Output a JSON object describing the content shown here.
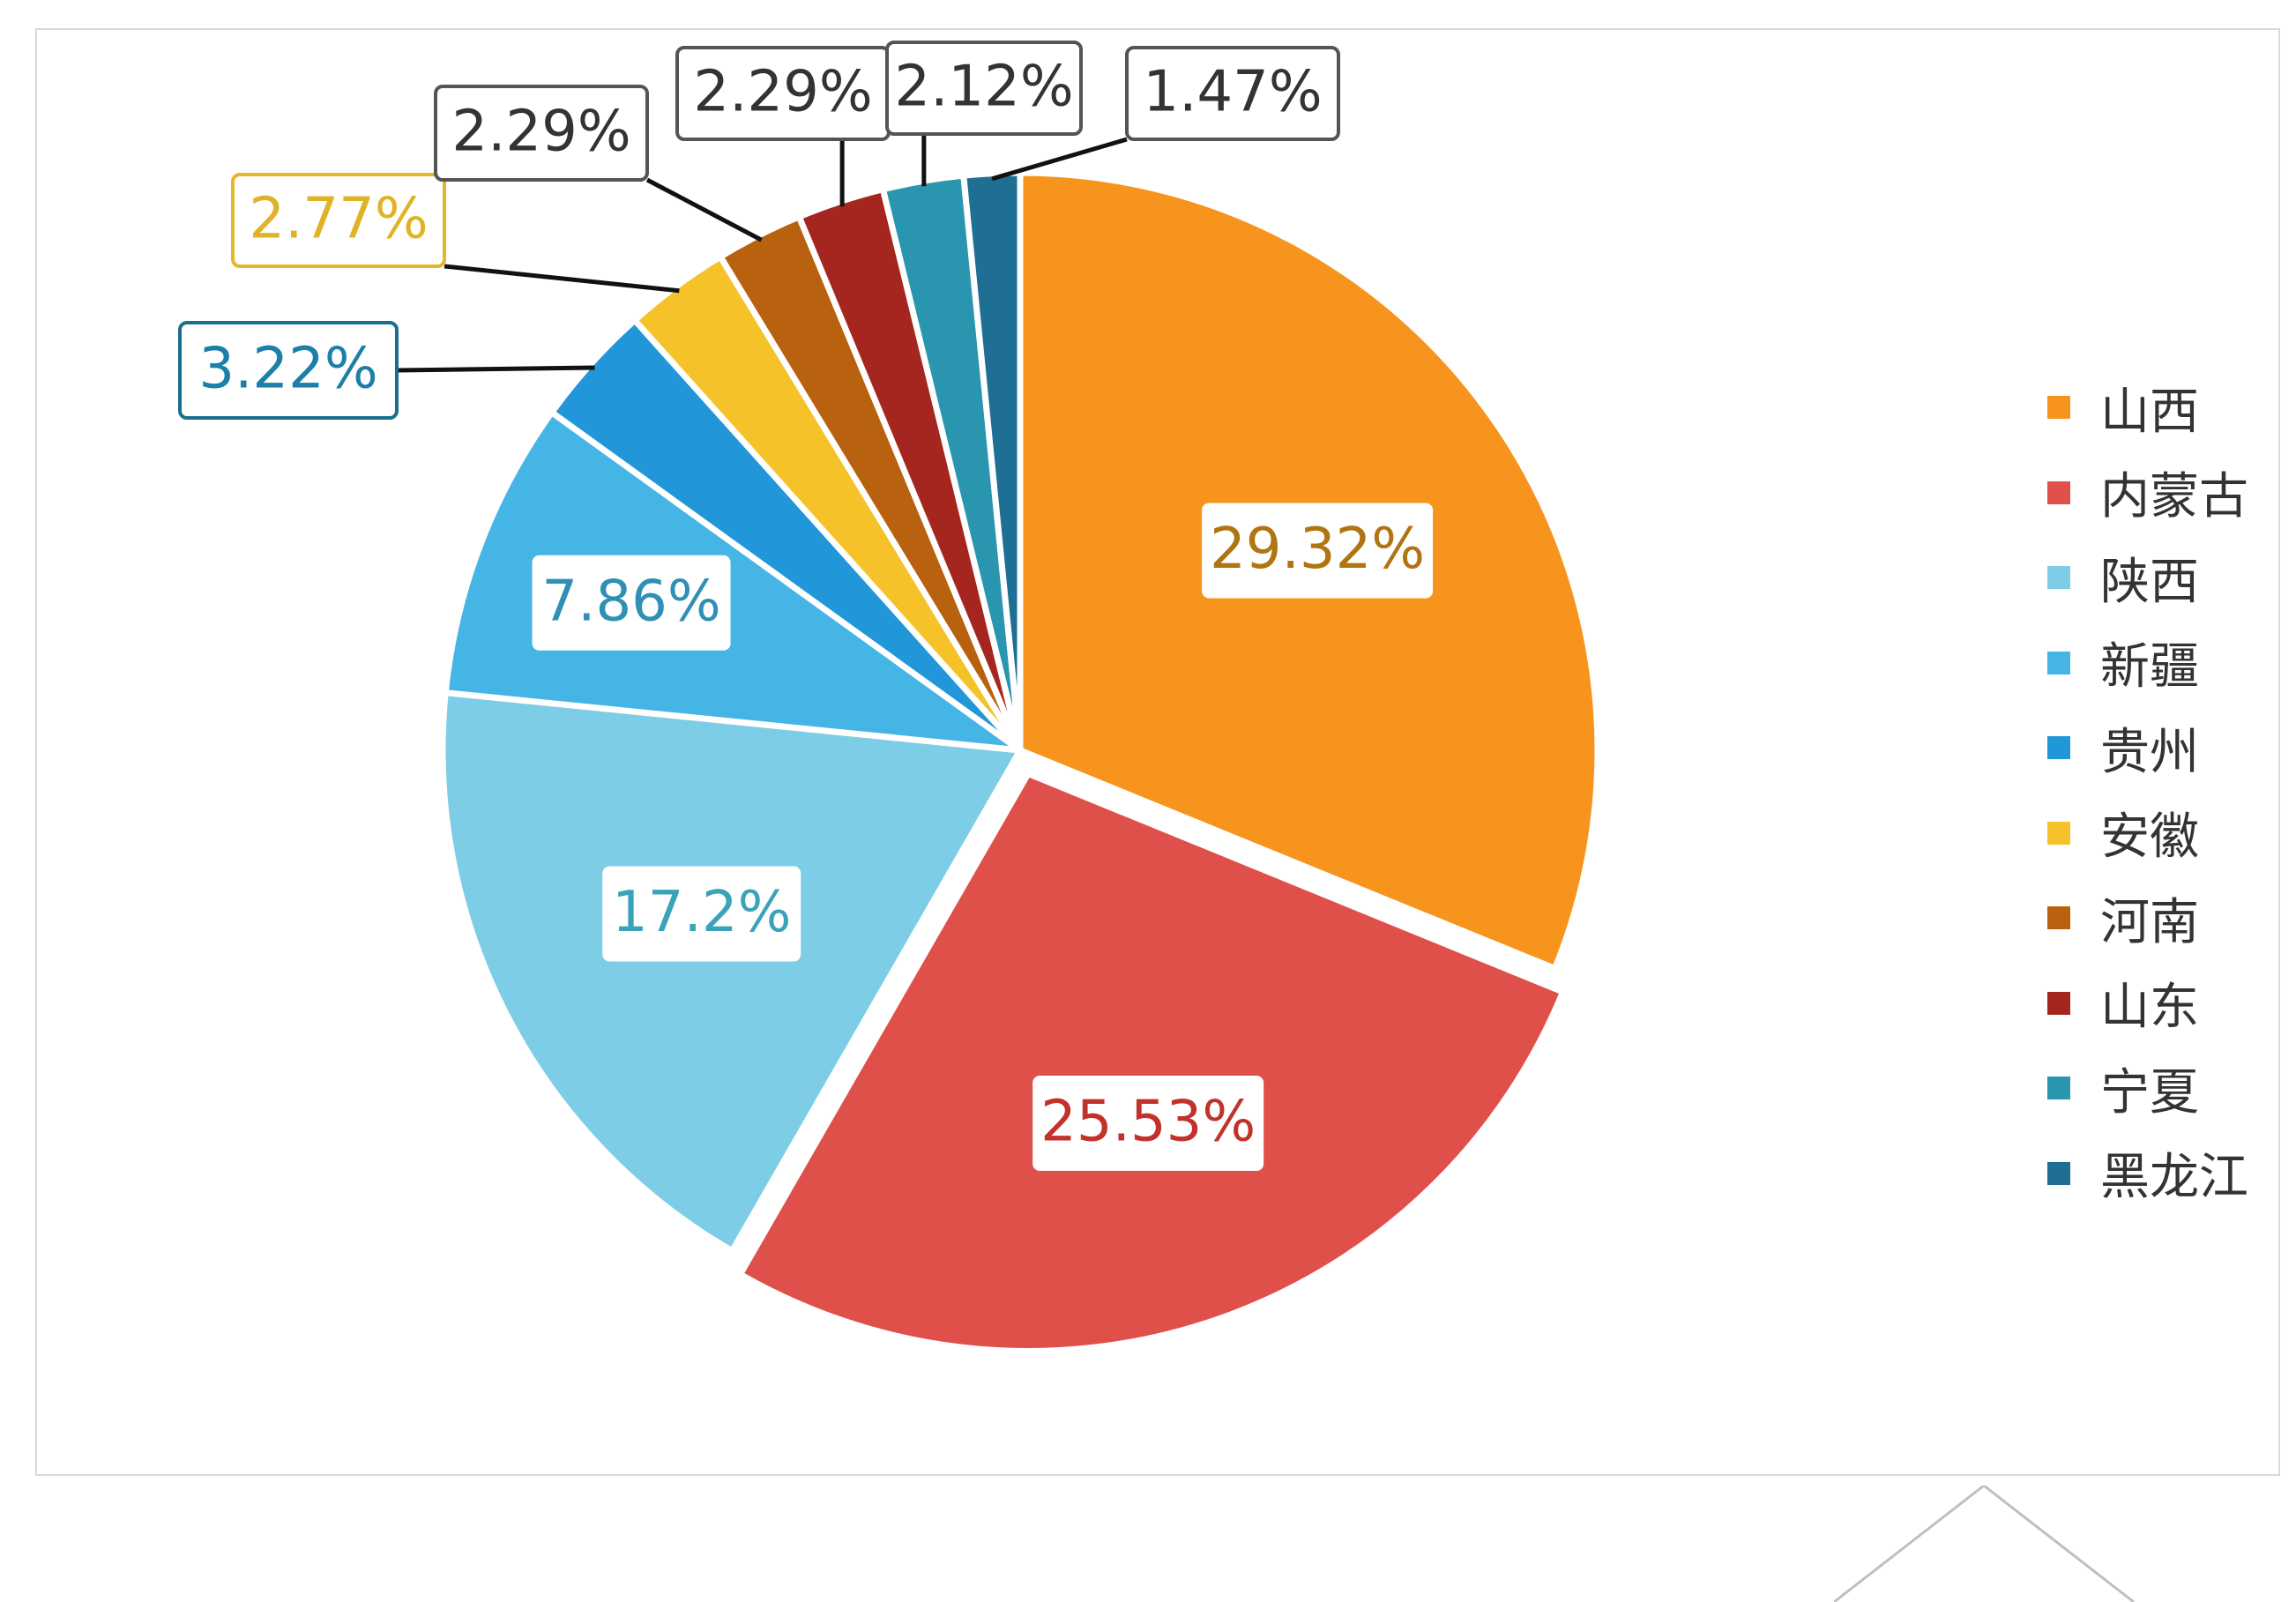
{
  "chart_data": {
    "type": "pie",
    "categories": [
      "山西",
      "内蒙古",
      "陕西",
      "新疆",
      "贵州",
      "安徽",
      "河南",
      "山东",
      "宁夏",
      "黑龙江"
    ],
    "values": [
      29.32,
      25.53,
      17.2,
      7.86,
      3.22,
      2.77,
      2.29,
      2.29,
      2.12,
      1.47
    ],
    "data_labels": [
      "29.32%",
      "25.53%",
      "17.2%",
      "7.86%",
      "3.22%",
      "2.77%",
      "2.29%",
      "2.29%",
      "2.12%",
      "1.47%"
    ],
    "colors": [
      "#F7941D",
      "#E0504A",
      "#7ECDE6",
      "#45B5E6",
      "#2196D9",
      "#F5C22A",
      "#B8610F",
      "#A5261F",
      "#2A95AE",
      "#1F6E94"
    ],
    "label_text_colors": [
      "#B07410",
      "#C2322B",
      "#3AA3BA",
      "#2F8FB5",
      "#1B7FA8",
      "#E0B326",
      "#333333",
      "#333333",
      "#333333",
      "#333333"
    ],
    "label_border_colors": [
      "",
      "",
      "",
      "",
      "#1B6E8E",
      "#E5B62A",
      "#555555",
      "#555555",
      "#555555",
      "#555555"
    ],
    "exploded": [
      false,
      true,
      false,
      false,
      false,
      false,
      false,
      false,
      false,
      false
    ],
    "start_angle_deg": 0,
    "direction": "clockwise",
    "legend": {
      "position": "right"
    }
  }
}
